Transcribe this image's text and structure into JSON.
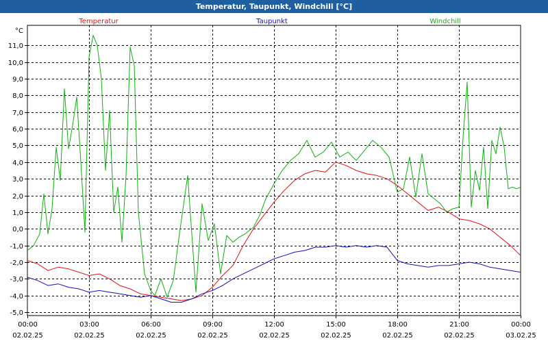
{
  "window": {
    "title": "Temperatur, Taupunkt, Windchill [°C]"
  },
  "chart_data": {
    "type": "line",
    "title": "Temperatur, Taupunkt, Windchill [°C]",
    "ylabel": "°C",
    "xlabel": "",
    "ylim": [
      -5.2,
      12.2
    ],
    "xlim": [
      0,
      24
    ],
    "grid": true,
    "legend_position": "top",
    "y_ticks": [
      -5.0,
      -4.0,
      -3.0,
      -2.0,
      -1.0,
      0.0,
      1.0,
      2.0,
      3.0,
      4.0,
      5.0,
      6.0,
      7.0,
      8.0,
      9.0,
      10.0,
      11.0
    ],
    "y_tick_labels": [
      "-5,0",
      "-4,0",
      "-3,0",
      "-2,0",
      "-1,0",
      "0,0",
      "1,0",
      "2,0",
      "3,0",
      "4,0",
      "5,0",
      "6,0",
      "7,0",
      "8,0",
      "9,0",
      "10,0",
      "11,0"
    ],
    "x_ticks": [
      0,
      3,
      6,
      9,
      12,
      15,
      18,
      21,
      24
    ],
    "x_tick_times": [
      "00:00",
      "03:00",
      "06:00",
      "09:00",
      "12:00",
      "15:00",
      "18:00",
      "21:00",
      "00:00"
    ],
    "x_tick_dates": [
      "02.02.25",
      "02.02.25",
      "02.02.25",
      "02.02.25",
      "02.02.25",
      "02.02.25",
      "02.02.25",
      "02.02.25",
      "03.02.25"
    ],
    "series": [
      {
        "name": "Temperatur",
        "color": "#e01010",
        "x": [
          0,
          0.5,
          1,
          1.5,
          2,
          2.5,
          3,
          3.5,
          4,
          4.5,
          5,
          5.5,
          6,
          6.5,
          7,
          7.5,
          8,
          8.5,
          9,
          9.5,
          10,
          10.5,
          11,
          11.5,
          12,
          12.5,
          13,
          13.5,
          14,
          14.5,
          15,
          15.5,
          16,
          16.5,
          17,
          17.5,
          18,
          18.5,
          19,
          19.5,
          20,
          20.5,
          21,
          21.5,
          22,
          22.5,
          23,
          23.5,
          24
        ],
        "values": [
          -1.9,
          -2.1,
          -2.5,
          -2.3,
          -2.4,
          -2.6,
          -2.8,
          -2.7,
          -3.0,
          -3.4,
          -3.6,
          -3.9,
          -4.0,
          -4.1,
          -4.2,
          -4.3,
          -4.2,
          -4.0,
          -3.5,
          -2.8,
          -2.2,
          -1.0,
          0.0,
          0.8,
          1.6,
          2.3,
          2.9,
          3.3,
          3.5,
          3.4,
          4.0,
          3.8,
          3.5,
          3.3,
          3.2,
          3.0,
          2.6,
          2.1,
          1.6,
          1.1,
          1.3,
          1.0,
          0.6,
          0.5,
          0.3,
          0.0,
          -0.5,
          -1.0,
          -1.6
        ]
      },
      {
        "name": "Taupunkt",
        "color": "#1010c0",
        "x": [
          0,
          0.5,
          1,
          1.5,
          2,
          2.5,
          3,
          3.5,
          4,
          4.5,
          5,
          5.5,
          6,
          6.5,
          7,
          7.5,
          8,
          8.5,
          9,
          9.5,
          10,
          10.5,
          11,
          11.5,
          12,
          12.5,
          13,
          13.5,
          14,
          14.5,
          15,
          15.5,
          16,
          16.5,
          17,
          17.5,
          18,
          18.5,
          19,
          19.5,
          20,
          20.5,
          21,
          21.5,
          22,
          22.5,
          23,
          23.5,
          24
        ],
        "values": [
          -2.9,
          -3.1,
          -3.4,
          -3.3,
          -3.5,
          -3.6,
          -3.8,
          -3.7,
          -3.8,
          -3.9,
          -4.0,
          -4.1,
          -4.0,
          -4.2,
          -4.4,
          -4.4,
          -4.2,
          -3.9,
          -3.7,
          -3.4,
          -3.0,
          -2.7,
          -2.4,
          -2.1,
          -1.8,
          -1.6,
          -1.4,
          -1.3,
          -1.1,
          -1.1,
          -1.0,
          -1.1,
          -1.0,
          -1.1,
          -1.0,
          -1.1,
          -1.9,
          -2.1,
          -2.2,
          -2.3,
          -2.2,
          -2.2,
          -2.1,
          -2.0,
          -2.1,
          -2.3,
          -2.4,
          -2.5,
          -2.6
        ]
      },
      {
        "name": "Windchill",
        "color": "#10b010",
        "x": [
          0,
          0.3,
          0.6,
          0.8,
          1.0,
          1.2,
          1.4,
          1.6,
          1.8,
          2.0,
          2.2,
          2.4,
          2.6,
          2.8,
          3.0,
          3.2,
          3.4,
          3.6,
          3.8,
          4.0,
          4.2,
          4.4,
          4.6,
          4.8,
          5.0,
          5.2,
          5.4,
          5.7,
          6.0,
          6.2,
          6.5,
          6.8,
          7.1,
          7.4,
          7.8,
          8.2,
          8.5,
          8.8,
          9.1,
          9.4,
          9.7,
          10.0,
          10.3,
          10.6,
          11.0,
          11.3,
          11.6,
          12.0,
          12.4,
          12.8,
          13.2,
          13.6,
          14.0,
          14.4,
          14.8,
          15.2,
          15.6,
          16.0,
          16.4,
          16.8,
          17.2,
          17.6,
          18.0,
          18.3,
          18.6,
          18.9,
          19.2,
          19.5,
          19.8,
          20.1,
          20.4,
          20.7,
          21.0,
          21.2,
          21.4,
          21.6,
          21.8,
          22.0,
          22.2,
          22.4,
          22.6,
          22.8,
          23.0,
          23.2,
          23.4,
          23.6,
          23.8,
          24.0
        ],
        "values": [
          -1.3,
          -1.0,
          -0.3,
          2.1,
          -0.3,
          1.2,
          4.9,
          2.9,
          8.4,
          4.8,
          6.2,
          7.9,
          4.0,
          -0.2,
          10.3,
          11.6,
          11.0,
          9.0,
          3.5,
          7.1,
          1.0,
          2.5,
          -0.8,
          3.2,
          10.9,
          9.8,
          1.0,
          -2.7,
          -3.7,
          -4.0,
          -3.0,
          -4.1,
          -3.1,
          -0.3,
          3.2,
          -3.8,
          1.5,
          -0.7,
          0.3,
          -2.7,
          -0.4,
          -0.8,
          -0.5,
          -0.3,
          0.1,
          0.8,
          1.8,
          2.7,
          3.5,
          4.1,
          4.5,
          5.3,
          4.3,
          4.6,
          5.2,
          4.3,
          4.6,
          4.1,
          4.7,
          5.3,
          4.9,
          4.3,
          2.2,
          2.4,
          4.3,
          1.9,
          4.5,
          2.1,
          1.8,
          1.5,
          1.0,
          1.2,
          1.3,
          5.5,
          8.8,
          1.3,
          3.5,
          2.3,
          4.9,
          1.2,
          5.3,
          4.5,
          6.1,
          4.9,
          2.4,
          2.5,
          2.4,
          2.5
        ]
      }
    ]
  }
}
